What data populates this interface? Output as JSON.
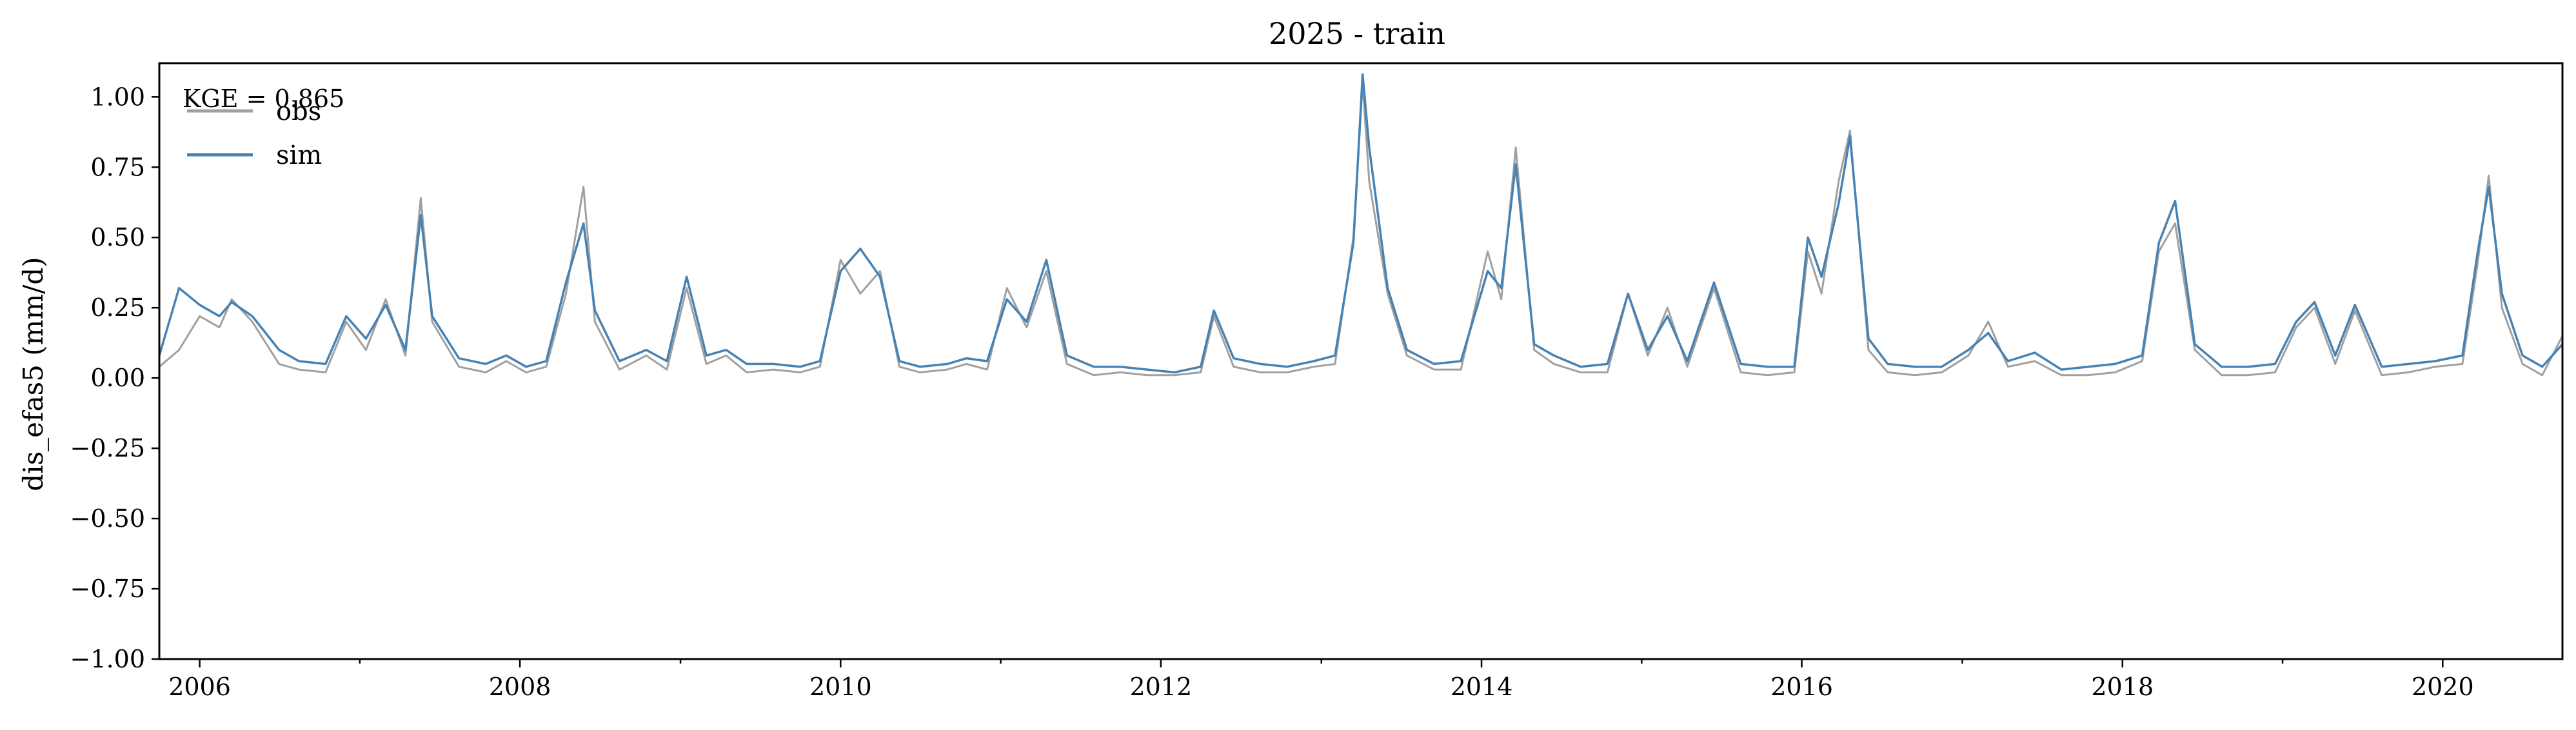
{
  "chart_data": {
    "type": "line",
    "title": "2025 - train",
    "xlabel": "",
    "ylabel": "dis_efas5 (mm/d)",
    "xlim": [
      "2005-10-01",
      "2020-09-30"
    ],
    "ylim": [
      -1.0,
      1.12
    ],
    "x_ticks": [
      "2006",
      "2008",
      "2010",
      "2012",
      "2014",
      "2016",
      "2018",
      "2020"
    ],
    "y_ticks": [
      "1.00",
      "0.75",
      "0.50",
      "0.25",
      "0.00",
      "−0.25",
      "−0.50",
      "−0.75",
      "−1.00"
    ],
    "y_tick_values": [
      1.0,
      0.75,
      0.5,
      0.25,
      0.0,
      -0.25,
      -0.5,
      -0.75,
      -1.0
    ],
    "grid": false,
    "legend_position": "top-left",
    "annotation": "KGE = 0.865",
    "series": [
      {
        "name": "obs",
        "color": "#a0a0a0",
        "x": [
          "2005-10-01",
          "2005-11-15",
          "2006-01-01",
          "2006-02-15",
          "2006-03-15",
          "2006-05-01",
          "2006-07-01",
          "2006-08-15",
          "2006-10-15",
          "2006-12-01",
          "2007-01-15",
          "2007-03-01",
          "2007-04-15",
          "2007-05-20",
          "2007-06-15",
          "2007-08-15",
          "2007-10-15",
          "2007-12-01",
          "2008-01-15",
          "2008-03-01",
          "2008-04-15",
          "2008-05-25",
          "2008-06-20",
          "2008-08-15",
          "2008-10-15",
          "2008-12-01",
          "2009-01-15",
          "2009-03-01",
          "2009-04-15",
          "2009-06-01",
          "2009-08-01",
          "2009-10-01",
          "2009-11-15",
          "2010-01-01",
          "2010-02-15",
          "2010-04-01",
          "2010-05-15",
          "2010-07-01",
          "2010-09-01",
          "2010-10-15",
          "2010-12-01",
          "2011-01-15",
          "2011-03-01",
          "2011-04-15",
          "2011-06-01",
          "2011-08-01",
          "2011-10-01",
          "2011-12-01",
          "2012-02-01",
          "2012-04-01",
          "2012-05-01",
          "2012-06-15",
          "2012-08-15",
          "2012-10-15",
          "2012-12-15",
          "2013-02-01",
          "2013-03-15",
          "2013-04-05",
          "2013-04-20",
          "2013-06-01",
          "2013-07-15",
          "2013-09-15",
          "2013-11-15",
          "2014-01-15",
          "2014-02-15",
          "2014-03-20",
          "2014-05-01",
          "2014-06-15",
          "2014-08-15",
          "2014-10-15",
          "2014-12-01",
          "2015-01-15",
          "2015-03-01",
          "2015-04-15",
          "2015-06-15",
          "2015-08-15",
          "2015-10-15",
          "2015-12-15",
          "2016-01-15",
          "2016-02-15",
          "2016-03-25",
          "2016-04-20",
          "2016-06-01",
          "2016-07-15",
          "2016-09-15",
          "2016-11-15",
          "2017-01-15",
          "2017-03-01",
          "2017-04-15",
          "2017-06-15",
          "2017-08-15",
          "2017-10-15",
          "2017-12-15",
          "2018-02-15",
          "2018-03-25",
          "2018-05-01",
          "2018-06-15",
          "2018-08-15",
          "2018-10-15",
          "2018-12-15",
          "2019-02-01",
          "2019-03-15",
          "2019-05-01",
          "2019-06-15",
          "2019-08-15",
          "2019-10-15",
          "2019-12-15",
          "2020-02-15",
          "2020-03-20",
          "2020-04-15",
          "2020-05-15",
          "2020-07-01",
          "2020-08-15",
          "2020-09-30"
        ],
        "values": [
          0.04,
          0.1,
          0.22,
          0.18,
          0.28,
          0.2,
          0.05,
          0.03,
          0.02,
          0.2,
          0.1,
          0.28,
          0.08,
          0.64,
          0.2,
          0.04,
          0.02,
          0.06,
          0.02,
          0.04,
          0.3,
          0.68,
          0.2,
          0.03,
          0.08,
          0.03,
          0.32,
          0.05,
          0.08,
          0.02,
          0.03,
          0.02,
          0.04,
          0.42,
          0.3,
          0.38,
          0.04,
          0.02,
          0.03,
          0.05,
          0.03,
          0.32,
          0.18,
          0.38,
          0.05,
          0.01,
          0.02,
          0.01,
          0.01,
          0.02,
          0.22,
          0.04,
          0.02,
          0.02,
          0.04,
          0.05,
          0.5,
          1.05,
          0.7,
          0.3,
          0.08,
          0.03,
          0.03,
          0.45,
          0.28,
          0.82,
          0.1,
          0.05,
          0.02,
          0.02,
          0.3,
          0.08,
          0.25,
          0.04,
          0.32,
          0.02,
          0.01,
          0.02,
          0.45,
          0.3,
          0.7,
          0.88,
          0.1,
          0.02,
          0.01,
          0.02,
          0.08,
          0.2,
          0.04,
          0.06,
          0.01,
          0.01,
          0.02,
          0.06,
          0.45,
          0.55,
          0.1,
          0.01,
          0.01,
          0.02,
          0.18,
          0.25,
          0.05,
          0.24,
          0.01,
          0.02,
          0.04,
          0.05,
          0.4,
          0.72,
          0.25,
          0.05,
          0.01,
          0.15
        ]
      },
      {
        "name": "sim",
        "color": "#4682b4",
        "x": [
          "2005-10-01",
          "2005-11-15",
          "2006-01-01",
          "2006-02-15",
          "2006-03-15",
          "2006-05-01",
          "2006-07-01",
          "2006-08-15",
          "2006-10-15",
          "2006-12-01",
          "2007-01-15",
          "2007-03-01",
          "2007-04-15",
          "2007-05-20",
          "2007-06-15",
          "2007-08-15",
          "2007-10-15",
          "2007-12-01",
          "2008-01-15",
          "2008-03-01",
          "2008-04-15",
          "2008-05-25",
          "2008-06-20",
          "2008-08-15",
          "2008-10-15",
          "2008-12-01",
          "2009-01-15",
          "2009-03-01",
          "2009-04-15",
          "2009-06-01",
          "2009-08-01",
          "2009-10-01",
          "2009-11-15",
          "2010-01-01",
          "2010-02-15",
          "2010-04-01",
          "2010-05-15",
          "2010-07-01",
          "2010-09-01",
          "2010-10-15",
          "2010-12-01",
          "2011-01-15",
          "2011-03-01",
          "2011-04-15",
          "2011-06-01",
          "2011-08-01",
          "2011-10-01",
          "2011-12-01",
          "2012-02-01",
          "2012-04-01",
          "2012-05-01",
          "2012-06-15",
          "2012-08-15",
          "2012-10-15",
          "2012-12-15",
          "2013-02-01",
          "2013-03-15",
          "2013-04-05",
          "2013-04-20",
          "2013-06-01",
          "2013-07-15",
          "2013-09-15",
          "2013-11-15",
          "2014-01-15",
          "2014-02-15",
          "2014-03-20",
          "2014-05-01",
          "2014-06-15",
          "2014-08-15",
          "2014-10-15",
          "2014-12-01",
          "2015-01-15",
          "2015-03-01",
          "2015-04-15",
          "2015-06-15",
          "2015-08-15",
          "2015-10-15",
          "2015-12-15",
          "2016-01-15",
          "2016-02-15",
          "2016-03-25",
          "2016-04-20",
          "2016-06-01",
          "2016-07-15",
          "2016-09-15",
          "2016-11-15",
          "2017-01-15",
          "2017-03-01",
          "2017-04-15",
          "2017-06-15",
          "2017-08-15",
          "2017-10-15",
          "2017-12-15",
          "2018-02-15",
          "2018-03-25",
          "2018-05-01",
          "2018-06-15",
          "2018-08-15",
          "2018-10-15",
          "2018-12-15",
          "2019-02-01",
          "2019-03-15",
          "2019-05-01",
          "2019-06-15",
          "2019-08-15",
          "2019-10-15",
          "2019-12-15",
          "2020-02-15",
          "2020-03-20",
          "2020-04-15",
          "2020-05-15",
          "2020-07-01",
          "2020-08-15",
          "2020-09-30"
        ],
        "values": [
          0.08,
          0.32,
          0.26,
          0.22,
          0.27,
          0.22,
          0.1,
          0.06,
          0.05,
          0.22,
          0.14,
          0.26,
          0.1,
          0.58,
          0.22,
          0.07,
          0.05,
          0.08,
          0.04,
          0.06,
          0.34,
          0.55,
          0.24,
          0.06,
          0.1,
          0.06,
          0.36,
          0.08,
          0.1,
          0.05,
          0.05,
          0.04,
          0.06,
          0.38,
          0.46,
          0.36,
          0.06,
          0.04,
          0.05,
          0.07,
          0.06,
          0.28,
          0.2,
          0.42,
          0.08,
          0.04,
          0.04,
          0.03,
          0.02,
          0.04,
          0.24,
          0.07,
          0.05,
          0.04,
          0.06,
          0.08,
          0.48,
          1.08,
          0.82,
          0.32,
          0.1,
          0.05,
          0.06,
          0.38,
          0.32,
          0.76,
          0.12,
          0.08,
          0.04,
          0.05,
          0.3,
          0.1,
          0.22,
          0.06,
          0.34,
          0.05,
          0.04,
          0.04,
          0.5,
          0.36,
          0.62,
          0.86,
          0.14,
          0.05,
          0.04,
          0.04,
          0.1,
          0.16,
          0.06,
          0.09,
          0.03,
          0.04,
          0.05,
          0.08,
          0.48,
          0.63,
          0.12,
          0.04,
          0.04,
          0.05,
          0.2,
          0.27,
          0.08,
          0.26,
          0.04,
          0.05,
          0.06,
          0.08,
          0.44,
          0.68,
          0.3,
          0.08,
          0.04,
          0.12
        ]
      }
    ]
  }
}
